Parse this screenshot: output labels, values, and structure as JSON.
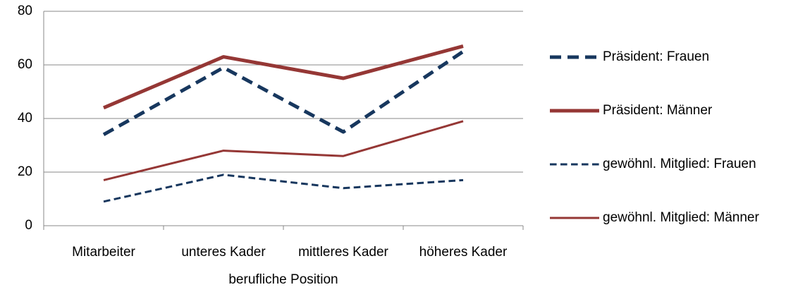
{
  "chart_data": {
    "type": "line",
    "x_label": "berufliche Position",
    "categories": [
      "Mitarbeiter",
      "unteres Kader",
      "mittleres Kader",
      "höheres Kader"
    ],
    "series": [
      {
        "name": "Präsident: Frauen",
        "color": "#17375e",
        "line_style": "dashed",
        "line_width": 5,
        "values": [
          34,
          59,
          35,
          65
        ]
      },
      {
        "name": "Präsident: Männer",
        "color": "#953735",
        "line_style": "solid",
        "line_width": 5,
        "values": [
          44,
          63,
          55,
          67
        ]
      },
      {
        "name": "gewöhnl. Mitglied: Frauen",
        "color": "#17375e",
        "line_style": "dashed",
        "line_width": 3,
        "values": [
          9,
          19,
          14,
          17
        ]
      },
      {
        "name": "gewöhnl. Mitglied: Männer",
        "color": "#953735",
        "line_style": "solid",
        "line_width": 3,
        "values": [
          17,
          28,
          26,
          39
        ]
      }
    ],
    "ylim": [
      0,
      80
    ],
    "yticks": [
      0,
      20,
      40,
      60,
      80
    ],
    "grid": true,
    "legend": "right"
  }
}
